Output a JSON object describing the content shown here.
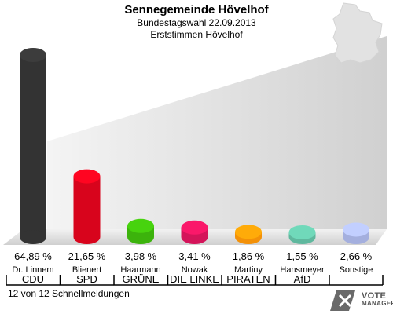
{
  "header": {
    "title": "Sennegemeinde Hövelhof",
    "subtitle1": "Bundestagswahl 22.09.2013",
    "subtitle2": "Erststimmen Hövelhof"
  },
  "footer": {
    "status": "12 von 12 Schnellmeldungen"
  },
  "logo": {
    "line1": "VOTE",
    "line2": "MANAGER"
  },
  "chart_data": {
    "type": "bar",
    "categories": [
      "Dr. Linnem",
      "Blienert",
      "Haarmann",
      "Nowak",
      "Martiny",
      "Hansmeyer",
      "Sonstige"
    ],
    "parties": [
      "CDU",
      "SPD",
      "GRÜNE",
      "DIE LINKE",
      "PIRATEN",
      "AfD",
      ""
    ],
    "values": [
      64.89,
      21.65,
      3.98,
      3.41,
      1.86,
      1.55,
      2.66
    ],
    "value_labels": [
      "64,89 %",
      "21,65 %",
      "3,98 %",
      "3,41 %",
      "1,86 %",
      "1,55 %",
      "2,66 %"
    ],
    "colors": [
      "#333333",
      "#d8041c",
      "#3cb30c",
      "#d4145a",
      "#f39108",
      "#5fb89e",
      "#a4afde"
    ],
    "ylim": [
      0,
      70
    ],
    "grid": false,
    "legend": "none"
  }
}
